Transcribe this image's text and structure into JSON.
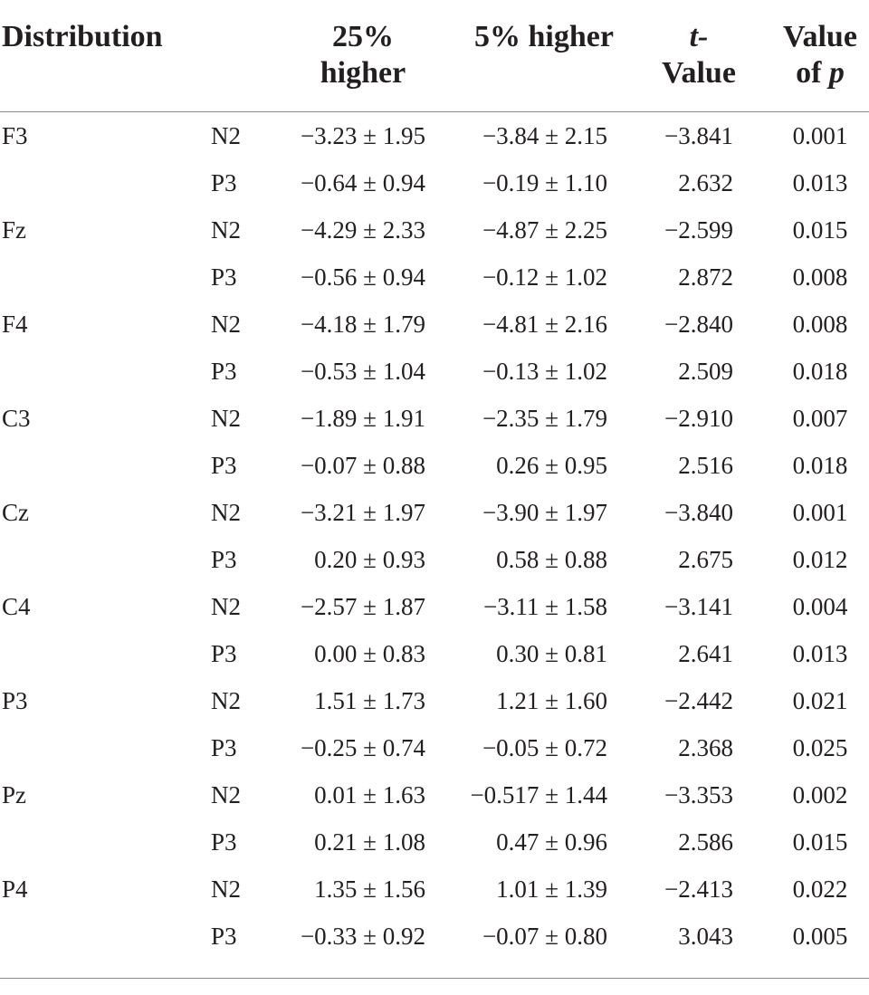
{
  "table": {
    "headers": {
      "distribution": "Distribution",
      "col25_line1": "25%",
      "col25_line2": "higher",
      "col5": "5% higher",
      "t_line1": "t-",
      "t_line2": "Value",
      "p_line1": "Value",
      "p_line2_prefix": "of ",
      "p_line2_symbol": "p"
    },
    "rows": [
      {
        "distribution": "F3",
        "component": "N2",
        "higher25": "−3.23 ± 1.95",
        "higher5": "−3.84 ± 2.15",
        "t_value": "−3.841",
        "p_value": "0.001"
      },
      {
        "distribution": "",
        "component": "P3",
        "higher25": "−0.64 ± 0.94",
        "higher5": "−0.19 ± 1.10",
        "t_value": "2.632",
        "p_value": "0.013"
      },
      {
        "distribution": "Fz",
        "component": "N2",
        "higher25": "−4.29 ± 2.33",
        "higher5": "−4.87 ± 2.25",
        "t_value": "−2.599",
        "p_value": "0.015"
      },
      {
        "distribution": "",
        "component": "P3",
        "higher25": "−0.56 ± 0.94",
        "higher5": "−0.12 ± 1.02",
        "t_value": "2.872",
        "p_value": "0.008"
      },
      {
        "distribution": "F4",
        "component": "N2",
        "higher25": "−4.18 ± 1.79",
        "higher5": "−4.81 ± 2.16",
        "t_value": "−2.840",
        "p_value": "0.008"
      },
      {
        "distribution": "",
        "component": "P3",
        "higher25": "−0.53 ± 1.04",
        "higher5": "−0.13 ± 1.02",
        "t_value": "2.509",
        "p_value": "0.018"
      },
      {
        "distribution": "C3",
        "component": "N2",
        "higher25": "−1.89 ± 1.91",
        "higher5": "−2.35 ± 1.79",
        "t_value": "−2.910",
        "p_value": "0.007"
      },
      {
        "distribution": "",
        "component": "P3",
        "higher25": "−0.07 ± 0.88",
        "higher5": "0.26 ± 0.95",
        "t_value": "2.516",
        "p_value": "0.018"
      },
      {
        "distribution": "Cz",
        "component": "N2",
        "higher25": "−3.21 ± 1.97",
        "higher5": "−3.90 ± 1.97",
        "t_value": "−3.840",
        "p_value": "0.001"
      },
      {
        "distribution": "",
        "component": "P3",
        "higher25": "0.20 ± 0.93",
        "higher5": "0.58 ± 0.88",
        "t_value": "2.675",
        "p_value": "0.012"
      },
      {
        "distribution": "C4",
        "component": "N2",
        "higher25": "−2.57 ± 1.87",
        "higher5": "−3.11 ± 1.58",
        "t_value": "−3.141",
        "p_value": "0.004"
      },
      {
        "distribution": "",
        "component": "P3",
        "higher25": "0.00 ± 0.83",
        "higher5": "0.30 ± 0.81",
        "t_value": "2.641",
        "p_value": "0.013"
      },
      {
        "distribution": "P3",
        "component": "N2",
        "higher25": "1.51 ± 1.73",
        "higher5": "1.21 ± 1.60",
        "t_value": "−2.442",
        "p_value": "0.021"
      },
      {
        "distribution": "",
        "component": "P3",
        "higher25": "−0.25 ± 0.74",
        "higher5": "−0.05 ± 0.72",
        "t_value": "2.368",
        "p_value": "0.025"
      },
      {
        "distribution": "Pz",
        "component": "N2",
        "higher25": "0.01 ± 1.63",
        "higher5": "−0.517 ± 1.44",
        "t_value": "−3.353",
        "p_value": "0.002"
      },
      {
        "distribution": "",
        "component": "P3",
        "higher25": "0.21 ± 1.08",
        "higher5": "0.47 ± 0.96",
        "t_value": "2.586",
        "p_value": "0.015"
      },
      {
        "distribution": "P4",
        "component": "N2",
        "higher25": "1.35 ± 1.56",
        "higher5": "1.01 ± 1.39",
        "t_value": "−2.413",
        "p_value": "0.022"
      },
      {
        "distribution": "",
        "component": "P3",
        "higher25": "−0.33 ± 0.92",
        "higher5": "−0.07 ± 0.80",
        "t_value": "3.043",
        "p_value": "0.005"
      }
    ]
  }
}
